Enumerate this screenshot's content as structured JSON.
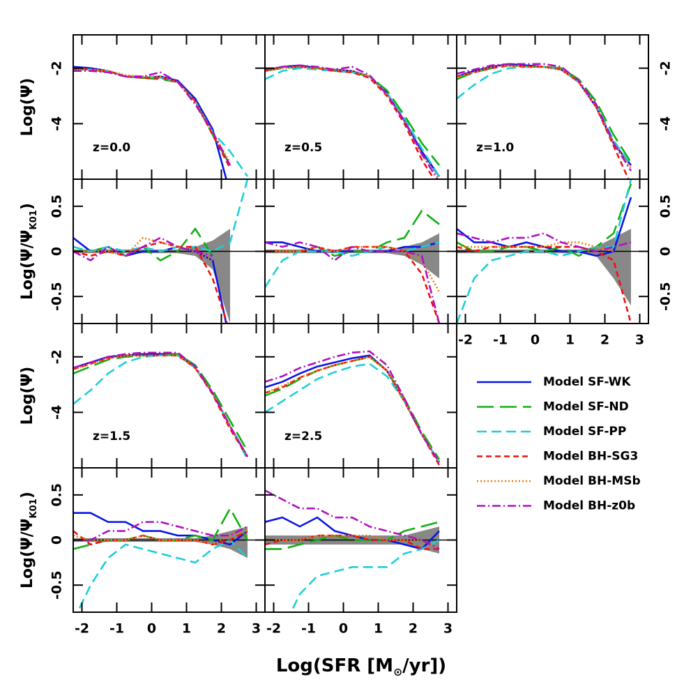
{
  "chart_data": {
    "type": "line",
    "xlabel": {
      "main": "Log(SFR [M",
      "sub": "⊙",
      "end": "/yr])"
    },
    "psi_ylabel": "Log(Ψ)",
    "ratio_ylabel": {
      "main": "Log(Ψ/Ψ",
      "sub": "K01",
      "end": ")"
    },
    "x": [
      -2.25,
      -1.75,
      -1.25,
      -0.75,
      -0.25,
      0.25,
      0.75,
      1.25,
      1.75,
      2.25,
      2.75
    ],
    "xlim": [
      -2.25,
      3.25
    ],
    "xticks": [
      -2,
      -1,
      0,
      1,
      2,
      3
    ],
    "psi_ylim": [
      -6,
      -0.8
    ],
    "psi_yticks": [
      -2,
      -4
    ],
    "ratio_ylim": [
      -0.8,
      0.8
    ],
    "ratio_yticks": [
      0.5,
      0,
      -0.5
    ],
    "band_color": "#888888",
    "series": [
      {
        "name": "Model SF-WK",
        "color": "#0a14e6",
        "dash": "none"
      },
      {
        "name": "Model SF-ND",
        "color": "#10b010",
        "dash": "24,9"
      },
      {
        "name": "Model SF-PP",
        "color": "#1ccfd6",
        "dash": "14,7"
      },
      {
        "name": "Model BH-SG3",
        "color": "#f01010",
        "dash": "8,5"
      },
      {
        "name": "Model BH-MSb",
        "color": "#f07a10",
        "dash": "2,3"
      },
      {
        "name": "Model BH-z0b",
        "color": "#b010c0",
        "dash": "12,4,2,4"
      }
    ],
    "panels": [
      {
        "kind": "psi",
        "label": "z=0.0",
        "values": [
          [
            -1.95,
            -2.0,
            -2.1,
            -2.3,
            -2.35,
            -2.3,
            -2.45,
            -3.1,
            -4.2,
            -6.5,
            null
          ],
          [
            -2.05,
            -2.05,
            -2.15,
            -2.3,
            -2.35,
            -2.4,
            -2.5,
            -3.2,
            -4.4,
            -5.5,
            null
          ],
          [
            -2.0,
            -2.05,
            -2.1,
            -2.3,
            -2.3,
            -2.35,
            -2.5,
            -3.2,
            -4.3,
            -5.0,
            -5.9
          ],
          [
            -2.0,
            -2.05,
            -2.1,
            -2.3,
            -2.35,
            -2.35,
            -2.5,
            -3.2,
            -4.4,
            -5.6,
            null
          ],
          [
            -2.05,
            -2.05,
            -2.1,
            -2.25,
            -2.3,
            -2.3,
            -2.5,
            -3.2,
            -4.3,
            -5.4,
            null
          ],
          [
            -2.1,
            -2.1,
            -2.15,
            -2.3,
            -2.3,
            -2.15,
            -2.5,
            -3.3,
            -4.3,
            -5.5,
            null
          ]
        ]
      },
      {
        "kind": "psi",
        "label": "z=0.5",
        "values": [
          [
            -2.1,
            -1.95,
            -1.9,
            -2.0,
            -2.05,
            -2.1,
            -2.3,
            -2.9,
            -3.9,
            -5.0,
            -5.9
          ],
          [
            -2.1,
            -2.0,
            -1.95,
            -2.0,
            -2.1,
            -2.15,
            -2.3,
            -2.8,
            -3.7,
            -4.7,
            -5.5
          ],
          [
            -2.4,
            -2.1,
            -2.0,
            -2.05,
            -2.1,
            -2.15,
            -2.3,
            -2.9,
            -3.8,
            -4.9,
            -5.9
          ],
          [
            -2.1,
            -1.95,
            -1.95,
            -2.0,
            -2.1,
            -2.15,
            -2.35,
            -3.0,
            -4.0,
            -5.3,
            -6.3
          ],
          [
            -2.1,
            -2.0,
            -1.95,
            -2.0,
            -2.05,
            -2.1,
            -2.3,
            -2.95,
            -3.9,
            -5.1,
            -6.0
          ],
          [
            -2.05,
            -1.95,
            -1.9,
            -1.95,
            -2.05,
            -1.95,
            -2.25,
            -2.95,
            -3.9,
            -5.1,
            -6.1
          ]
        ]
      },
      {
        "kind": "psi",
        "label": "z=1.0",
        "values": [
          [
            -2.3,
            -2.1,
            -1.95,
            -1.85,
            -1.9,
            -1.95,
            -2.05,
            -2.5,
            -3.4,
            -4.7,
            -5.5
          ],
          [
            -2.4,
            -2.15,
            -2.0,
            -1.9,
            -1.95,
            -1.95,
            -2.0,
            -2.4,
            -3.2,
            -4.4,
            -5.4
          ],
          [
            -3.1,
            -2.6,
            -2.2,
            -2.0,
            -1.95,
            -1.95,
            -2.05,
            -2.5,
            -3.3,
            -4.6,
            -5.5
          ],
          [
            -2.3,
            -2.15,
            -2.0,
            -1.9,
            -1.95,
            -1.95,
            -2.05,
            -2.5,
            -3.4,
            -4.8,
            -6.2
          ],
          [
            -2.3,
            -2.15,
            -1.95,
            -1.9,
            -1.95,
            -1.95,
            -2.05,
            -2.5,
            -3.4,
            -4.7,
            -5.6
          ],
          [
            -2.2,
            -2.05,
            -1.9,
            -1.85,
            -1.85,
            -1.85,
            -1.95,
            -2.45,
            -3.3,
            -4.7,
            -5.7
          ]
        ]
      },
      {
        "kind": "ratio",
        "values": [
          [
            0.15,
            0.0,
            0.05,
            -0.05,
            0.0,
            0.0,
            0.05,
            0.0,
            -0.1,
            -1.0,
            null
          ],
          [
            0.0,
            0.0,
            0.05,
            -0.05,
            0.05,
            -0.1,
            0.0,
            0.25,
            -0.05,
            null,
            null
          ],
          [
            0.05,
            0.0,
            0.05,
            0.0,
            0.05,
            0.0,
            0.05,
            0.05,
            0.0,
            0.1,
            0.8
          ],
          [
            0.0,
            -0.05,
            0.0,
            -0.05,
            0.05,
            0.1,
            0.05,
            0.05,
            -0.3,
            -0.9,
            null
          ],
          [
            0.0,
            0.0,
            0.0,
            -0.05,
            0.15,
            0.1,
            0.05,
            0.0,
            -0.1,
            null,
            null
          ],
          [
            0.0,
            -0.1,
            0.05,
            -0.05,
            0.05,
            0.15,
            0.05,
            0.0,
            -0.05,
            null,
            null
          ]
        ],
        "band_upper": [
          0.02,
          0.02,
          0.02,
          0.02,
          0.02,
          0.02,
          0.02,
          0.05,
          0.12,
          0.25,
          null
        ],
        "band_lower": [
          -0.02,
          -0.02,
          -0.02,
          -0.02,
          -0.02,
          -0.02,
          -0.02,
          -0.05,
          -0.2,
          -0.8,
          null
        ]
      },
      {
        "kind": "ratio",
        "values": [
          [
            0.1,
            0.1,
            0.05,
            0.0,
            0.0,
            0.0,
            0.0,
            0.0,
            0.05,
            0.05,
            0.1
          ],
          [
            0.0,
            0.0,
            0.0,
            0.05,
            -0.05,
            0.0,
            0.0,
            0.1,
            0.15,
            0.45,
            0.3
          ],
          [
            -0.4,
            -0.1,
            0.0,
            0.0,
            0.0,
            -0.05,
            0.0,
            0.05,
            0.0,
            0.05,
            0.1
          ],
          [
            0.0,
            0.0,
            0.0,
            0.05,
            0.0,
            0.05,
            0.05,
            0.05,
            0.0,
            -0.25,
            -0.8
          ],
          [
            0.0,
            0.0,
            0.0,
            0.05,
            0.0,
            0.05,
            0.05,
            0.05,
            0.0,
            -0.1,
            -0.45
          ],
          [
            0.1,
            0.05,
            0.1,
            0.05,
            -0.1,
            0.05,
            0.0,
            0.0,
            0.0,
            -0.05,
            -0.8
          ]
        ],
        "band_upper": [
          0.02,
          0.02,
          0.02,
          0.02,
          0.02,
          0.02,
          0.02,
          0.02,
          0.05,
          0.1,
          0.2
        ],
        "band_lower": [
          -0.02,
          -0.02,
          -0.02,
          -0.02,
          -0.02,
          -0.02,
          -0.02,
          -0.02,
          -0.05,
          -0.15,
          -0.3
        ]
      },
      {
        "kind": "ratio",
        "values": [
          [
            0.25,
            0.1,
            0.1,
            0.05,
            0.1,
            0.05,
            0.0,
            0.0,
            -0.05,
            0.0,
            0.6
          ],
          [
            0.1,
            0.0,
            0.0,
            0.05,
            0.05,
            0.0,
            0.05,
            -0.05,
            0.05,
            0.2,
            0.75
          ],
          [
            -0.8,
            -0.3,
            -0.1,
            -0.05,
            0.0,
            0.0,
            -0.05,
            0.0,
            0.05,
            0.05,
            0.8
          ],
          [
            0.05,
            0.0,
            0.05,
            0.05,
            0.05,
            0.05,
            0.05,
            0.05,
            0.0,
            -0.1,
            -0.8
          ],
          [
            0.05,
            0.05,
            0.05,
            0.05,
            0.05,
            0.05,
            0.1,
            0.1,
            0.05,
            0.0,
            null
          ],
          [
            0.2,
            0.15,
            0.1,
            0.15,
            0.15,
            0.2,
            0.1,
            0.05,
            0.0,
            0.05,
            0.1
          ]
        ],
        "band_upper": [
          0.02,
          0.02,
          0.02,
          0.02,
          0.02,
          0.02,
          0.02,
          0.02,
          0.05,
          0.15,
          0.25
        ],
        "band_lower": [
          -0.02,
          -0.02,
          -0.02,
          -0.02,
          -0.02,
          -0.02,
          -0.02,
          -0.02,
          -0.05,
          -0.3,
          -0.6
        ]
      },
      {
        "kind": "psi",
        "label": "z=1.5",
        "values": [
          [
            -2.4,
            -2.2,
            -2.0,
            -1.95,
            -1.9,
            -1.9,
            -1.9,
            -2.4,
            -3.3,
            -4.5,
            -5.6
          ],
          [
            -2.6,
            -2.35,
            -2.1,
            -2.0,
            -1.95,
            -1.95,
            -1.9,
            -2.3,
            -3.2,
            -4.3,
            -5.4
          ],
          [
            -3.7,
            -3.2,
            -2.6,
            -2.2,
            -2.0,
            -1.95,
            -1.95,
            -2.4,
            -3.3,
            -4.5,
            -5.7
          ],
          [
            -2.45,
            -2.25,
            -2.05,
            -1.95,
            -1.95,
            -1.95,
            -1.95,
            -2.4,
            -3.35,
            -4.6,
            -5.6
          ],
          [
            -2.45,
            -2.25,
            -2.05,
            -1.95,
            -1.95,
            -1.95,
            -1.95,
            -2.4,
            -3.3,
            -4.5,
            -5.6
          ],
          [
            -2.4,
            -2.2,
            -2.0,
            -1.9,
            -1.85,
            -1.85,
            -1.85,
            -2.35,
            -3.3,
            -4.5,
            -5.6
          ]
        ]
      },
      {
        "kind": "psi",
        "label": "z=2.5",
        "values": [
          [
            -3.1,
            -2.9,
            -2.6,
            -2.35,
            -2.2,
            -2.05,
            -1.95,
            -2.5,
            -3.6,
            -4.8,
            -5.8
          ],
          [
            -3.4,
            -3.15,
            -2.8,
            -2.5,
            -2.3,
            -2.15,
            -2.0,
            -2.5,
            -3.5,
            -4.7,
            -5.7
          ],
          [
            -4.0,
            -3.6,
            -3.2,
            -2.8,
            -2.55,
            -2.35,
            -2.25,
            -2.7,
            -3.6,
            -4.8,
            -5.8
          ],
          [
            -3.3,
            -3.1,
            -2.75,
            -2.5,
            -2.3,
            -2.15,
            -2.0,
            -2.5,
            -3.6,
            -4.8,
            -5.9
          ],
          [
            -3.3,
            -3.05,
            -2.75,
            -2.5,
            -2.3,
            -2.15,
            -2.0,
            -2.5,
            -3.6,
            -4.8,
            -5.8
          ],
          [
            -2.9,
            -2.7,
            -2.4,
            -2.2,
            -2.0,
            -1.85,
            -1.8,
            -2.3,
            -3.5,
            -4.8,
            -5.8
          ]
        ]
      },
      {
        "kind": "ratio",
        "values": [
          [
            0.3,
            0.3,
            0.2,
            0.2,
            0.1,
            0.1,
            0.05,
            0.05,
            0.0,
            -0.05,
            0.1
          ],
          [
            -0.1,
            -0.05,
            0.0,
            0.0,
            0.05,
            0.0,
            0.0,
            0.05,
            0.0,
            0.35,
            0.0
          ],
          [
            -0.9,
            -0.5,
            -0.2,
            -0.05,
            -0.1,
            -0.15,
            -0.2,
            -0.25,
            -0.1,
            0.0,
            -0.2
          ],
          [
            0.1,
            -0.05,
            0.0,
            0.0,
            0.05,
            0.0,
            0.0,
            0.0,
            -0.05,
            0.0,
            0.1
          ],
          [
            0.05,
            0.0,
            0.0,
            0.0,
            0.05,
            0.0,
            0.0,
            0.0,
            -0.05,
            0.05,
            0.1
          ],
          [
            0.0,
            0.0,
            0.1,
            0.1,
            0.2,
            0.2,
            0.15,
            0.1,
            0.05,
            0.05,
            0.15
          ]
        ],
        "band_upper": [
          0.02,
          0.02,
          0.02,
          0.02,
          0.02,
          0.02,
          0.02,
          0.02,
          0.05,
          0.1,
          0.15
        ],
        "band_lower": [
          -0.02,
          -0.02,
          -0.02,
          -0.02,
          -0.02,
          -0.02,
          -0.02,
          -0.02,
          -0.05,
          -0.1,
          -0.2
        ]
      },
      {
        "kind": "ratio",
        "values": [
          [
            0.2,
            0.25,
            0.15,
            0.25,
            0.1,
            0.05,
            0.0,
            0.0,
            -0.05,
            -0.1,
            0.1
          ],
          [
            -0.1,
            -0.1,
            -0.05,
            0.0,
            0.05,
            0.0,
            0.0,
            0.0,
            0.1,
            0.15,
            0.2
          ],
          [
            -0.9,
            -1.0,
            -0.6,
            -0.4,
            -0.35,
            -0.3,
            -0.3,
            -0.3,
            -0.15,
            -0.1,
            0.0
          ],
          [
            -0.05,
            0.0,
            0.0,
            0.05,
            0.05,
            0.05,
            0.0,
            0.0,
            0.0,
            -0.1,
            -0.1
          ],
          [
            0.0,
            0.0,
            0.0,
            0.05,
            0.05,
            0.05,
            0.05,
            0.0,
            0.0,
            0.0,
            -0.1
          ],
          [
            0.55,
            0.45,
            0.35,
            0.35,
            0.25,
            0.25,
            0.15,
            0.1,
            0.05,
            0.0,
            -0.1
          ]
        ],
        "band_upper": [
          0.05,
          0.05,
          0.05,
          0.05,
          0.05,
          0.05,
          0.05,
          0.05,
          0.05,
          0.1,
          0.15
        ],
        "band_lower": [
          -0.05,
          -0.05,
          -0.05,
          -0.05,
          -0.05,
          -0.05,
          -0.05,
          -0.05,
          -0.05,
          -0.1,
          -0.15
        ]
      }
    ]
  }
}
